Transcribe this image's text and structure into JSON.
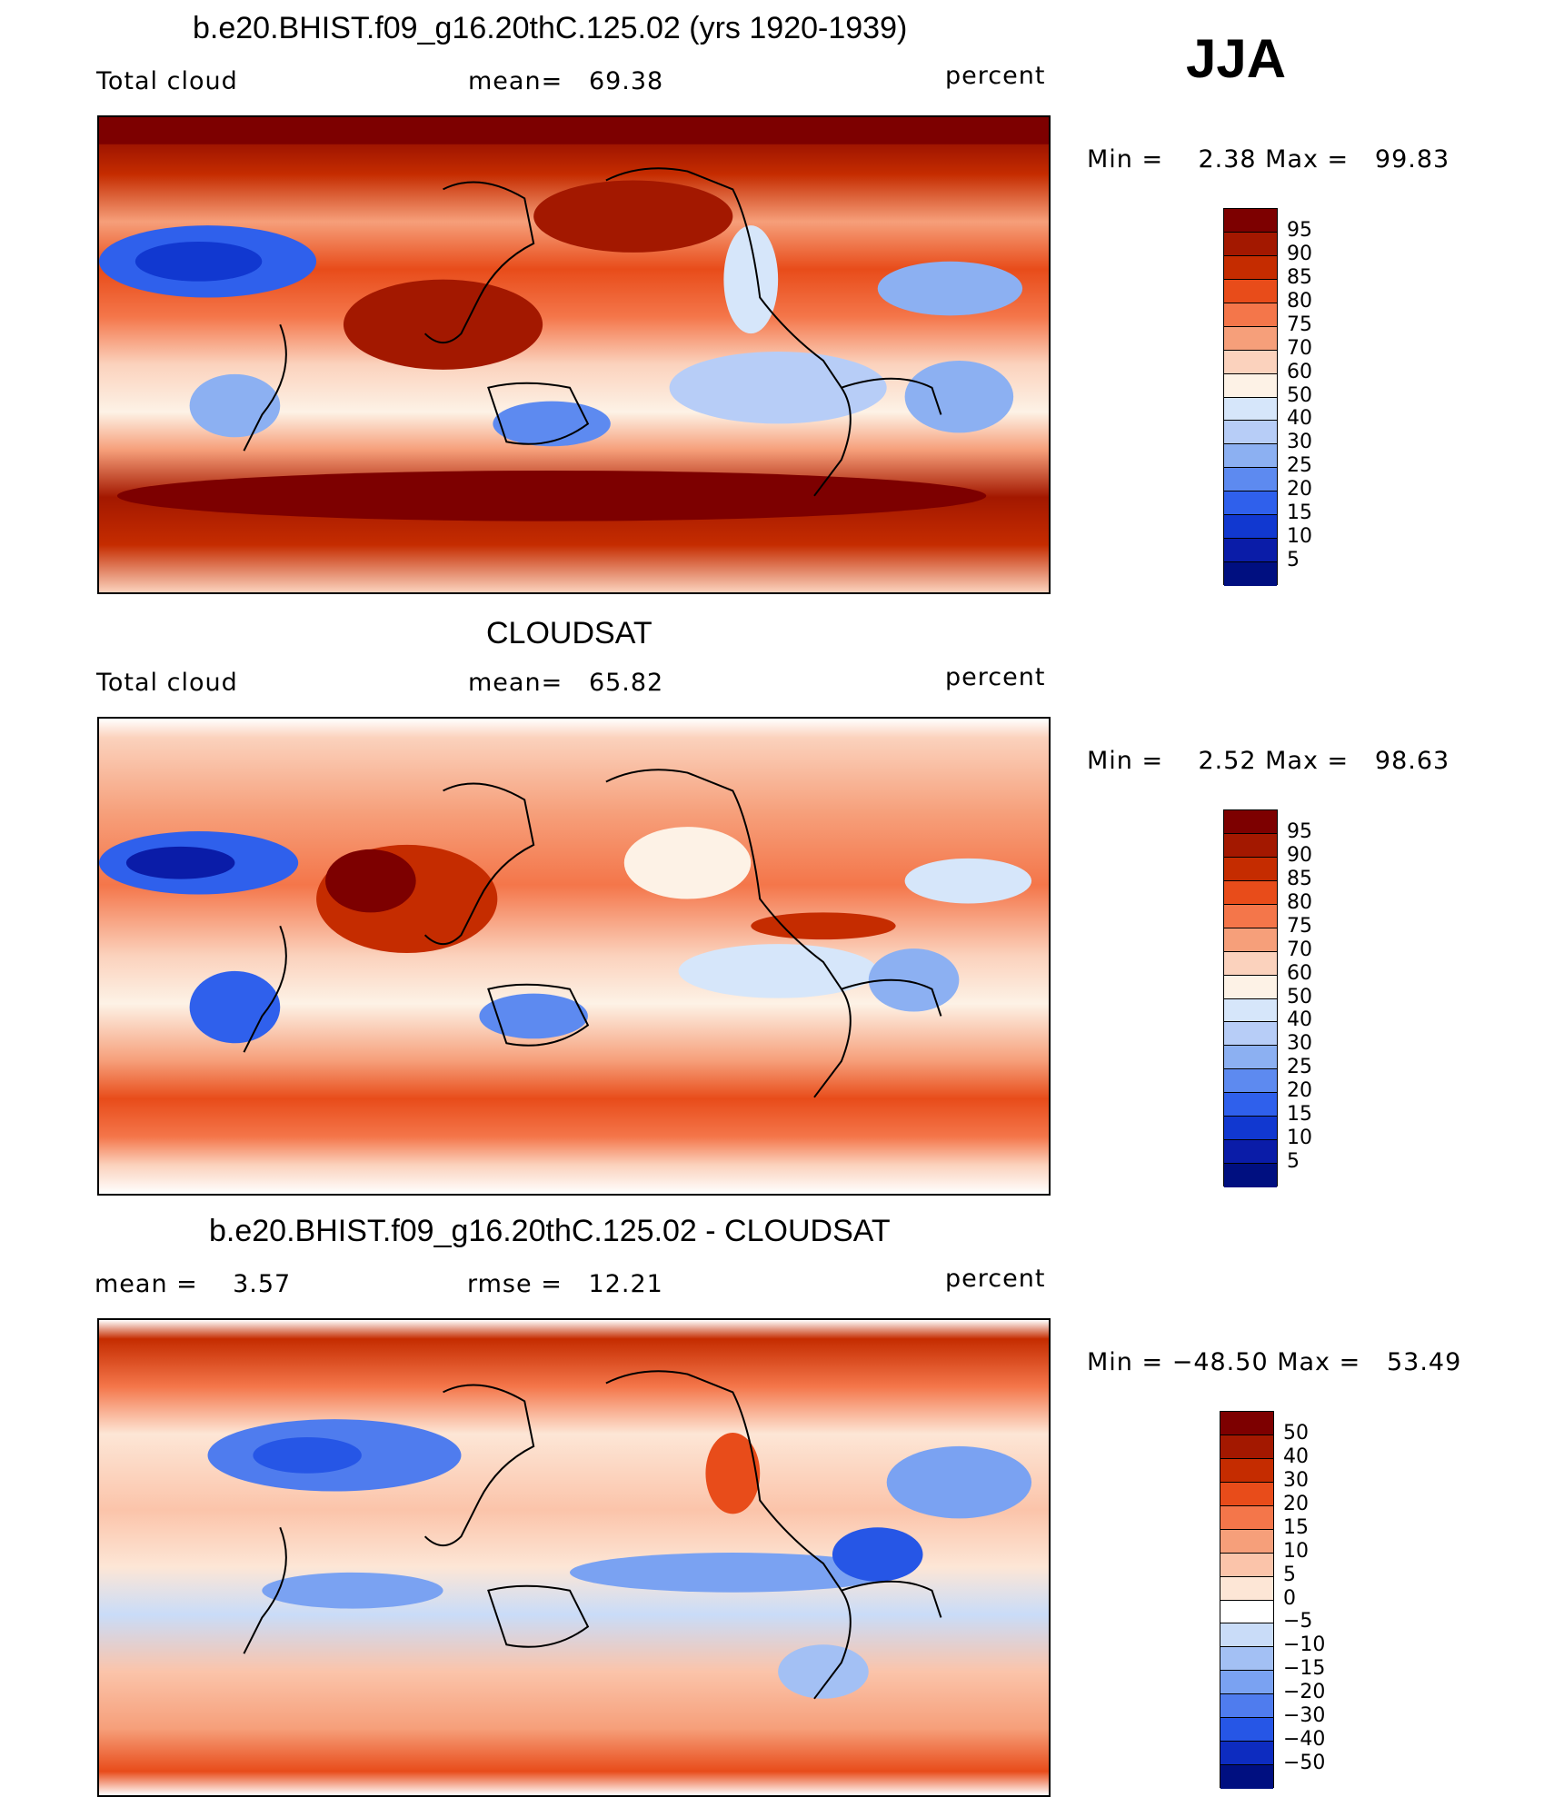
{
  "season": "JJA",
  "panels": [
    {
      "title": "b.e20.BHIST.f09_g16.20thC.125.02 (yrs 1920-1939)",
      "left_label": "Total cloud",
      "center_label": "mean=   69.38",
      "right_label": "percent",
      "minmax": "Min =    2.38 Max =   99.83",
      "colorbar": {
        "labels": [
          "95",
          "90",
          "85",
          "80",
          "75",
          "70",
          "60",
          "50",
          "40",
          "30",
          "25",
          "20",
          "15",
          "10",
          "5"
        ],
        "colors": [
          "#7d0000",
          "#a31800",
          "#c52c00",
          "#e84c1a",
          "#f4764a",
          "#f69f7a",
          "#fbd2bd",
          "#fdf2e6",
          "#d6e6fa",
          "#b7cdf7",
          "#8cb0f2",
          "#5d8af0",
          "#2f60ec",
          "#1138d0",
          "#0a1ca8",
          "#000f80"
        ]
      }
    },
    {
      "title": "CLOUDSAT",
      "left_label": "Total cloud",
      "center_label": "mean=   65.82",
      "right_label": "percent",
      "minmax": "Min =    2.52 Max =   98.63",
      "colorbar": {
        "labels": [
          "95",
          "90",
          "85",
          "80",
          "75",
          "70",
          "60",
          "50",
          "40",
          "30",
          "25",
          "20",
          "15",
          "10",
          "5"
        ],
        "colors": [
          "#7d0000",
          "#a31800",
          "#c52c00",
          "#e84c1a",
          "#f4764a",
          "#f69f7a",
          "#fbd2bd",
          "#fdf2e6",
          "#d6e6fa",
          "#b7cdf7",
          "#8cb0f2",
          "#5d8af0",
          "#2f60ec",
          "#1138d0",
          "#0a1ca8",
          "#000f80"
        ]
      }
    },
    {
      "title": "b.e20.BHIST.f09_g16.20thC.125.02 - CLOUDSAT",
      "left_label": "mean =    3.57",
      "center_label": "rmse =   12.21",
      "right_label": "percent",
      "minmax": "Min = −48.50 Max =   53.49",
      "colorbar": {
        "labels": [
          "50",
          "40",
          "30",
          "20",
          "15",
          "10",
          "5",
          "0",
          "−5",
          "−10",
          "−15",
          "−20",
          "−30",
          "−40",
          "−50"
        ],
        "colors": [
          "#7d0000",
          "#a31800",
          "#c52c00",
          "#e84c1a",
          "#f4764a",
          "#f69f7a",
          "#fbc4aa",
          "#fde6d6",
          "#ffffff",
          "#c9dcf8",
          "#a3c0f4",
          "#7aa2f2",
          "#4f7cee",
          "#2656e6",
          "#0d2cc0",
          "#000f80"
        ]
      }
    }
  ]
}
